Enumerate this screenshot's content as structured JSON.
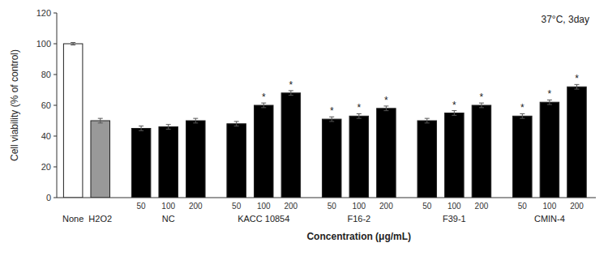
{
  "chart_data": {
    "type": "bar",
    "categories": [
      "None",
      "H2O2",
      "50",
      "100",
      "200",
      "50",
      "100",
      "200",
      "50",
      "100",
      "200",
      "50",
      "100",
      "200",
      "50",
      "100",
      "200"
    ],
    "category_groups": [
      null,
      null,
      "NC",
      "NC",
      "NC",
      "KACC 10854",
      "KACC 10854",
      "KACC 10854",
      "F16-2",
      "F16-2",
      "F16-2",
      "F39-1",
      "F39-1",
      "F39-1",
      "CMIN-4",
      "CMIN-4",
      "CMIN-4"
    ],
    "values": [
      100,
      50,
      45,
      46,
      50,
      48,
      60,
      68,
      51,
      53,
      58,
      50,
      55,
      60,
      53,
      62,
      72
    ],
    "errors": [
      0.8,
      1.5,
      1.5,
      1.5,
      1.5,
      1.5,
      1.5,
      1.5,
      1.5,
      1.5,
      1.5,
      1.5,
      1.5,
      1.5,
      1.5,
      1.5,
      1.5
    ],
    "significance": [
      null,
      null,
      null,
      null,
      null,
      null,
      "*",
      "*",
      "*",
      "*",
      "*",
      null,
      "*",
      "*",
      "*",
      "*",
      "*"
    ],
    "colors": [
      "white",
      "#999999",
      "black",
      "black",
      "black",
      "black",
      "black",
      "black",
      "black",
      "black",
      "black",
      "black",
      "black",
      "black",
      "black",
      "black",
      "black"
    ],
    "ylabel": "Cell viability (% of control)",
    "xlabel": "Concentration (μg/mL)",
    "annotation": "37°C, 3day",
    "ylim": [
      0,
      120
    ],
    "yticks": [
      0,
      20,
      40,
      60,
      80,
      100,
      120
    ],
    "grid": false
  }
}
